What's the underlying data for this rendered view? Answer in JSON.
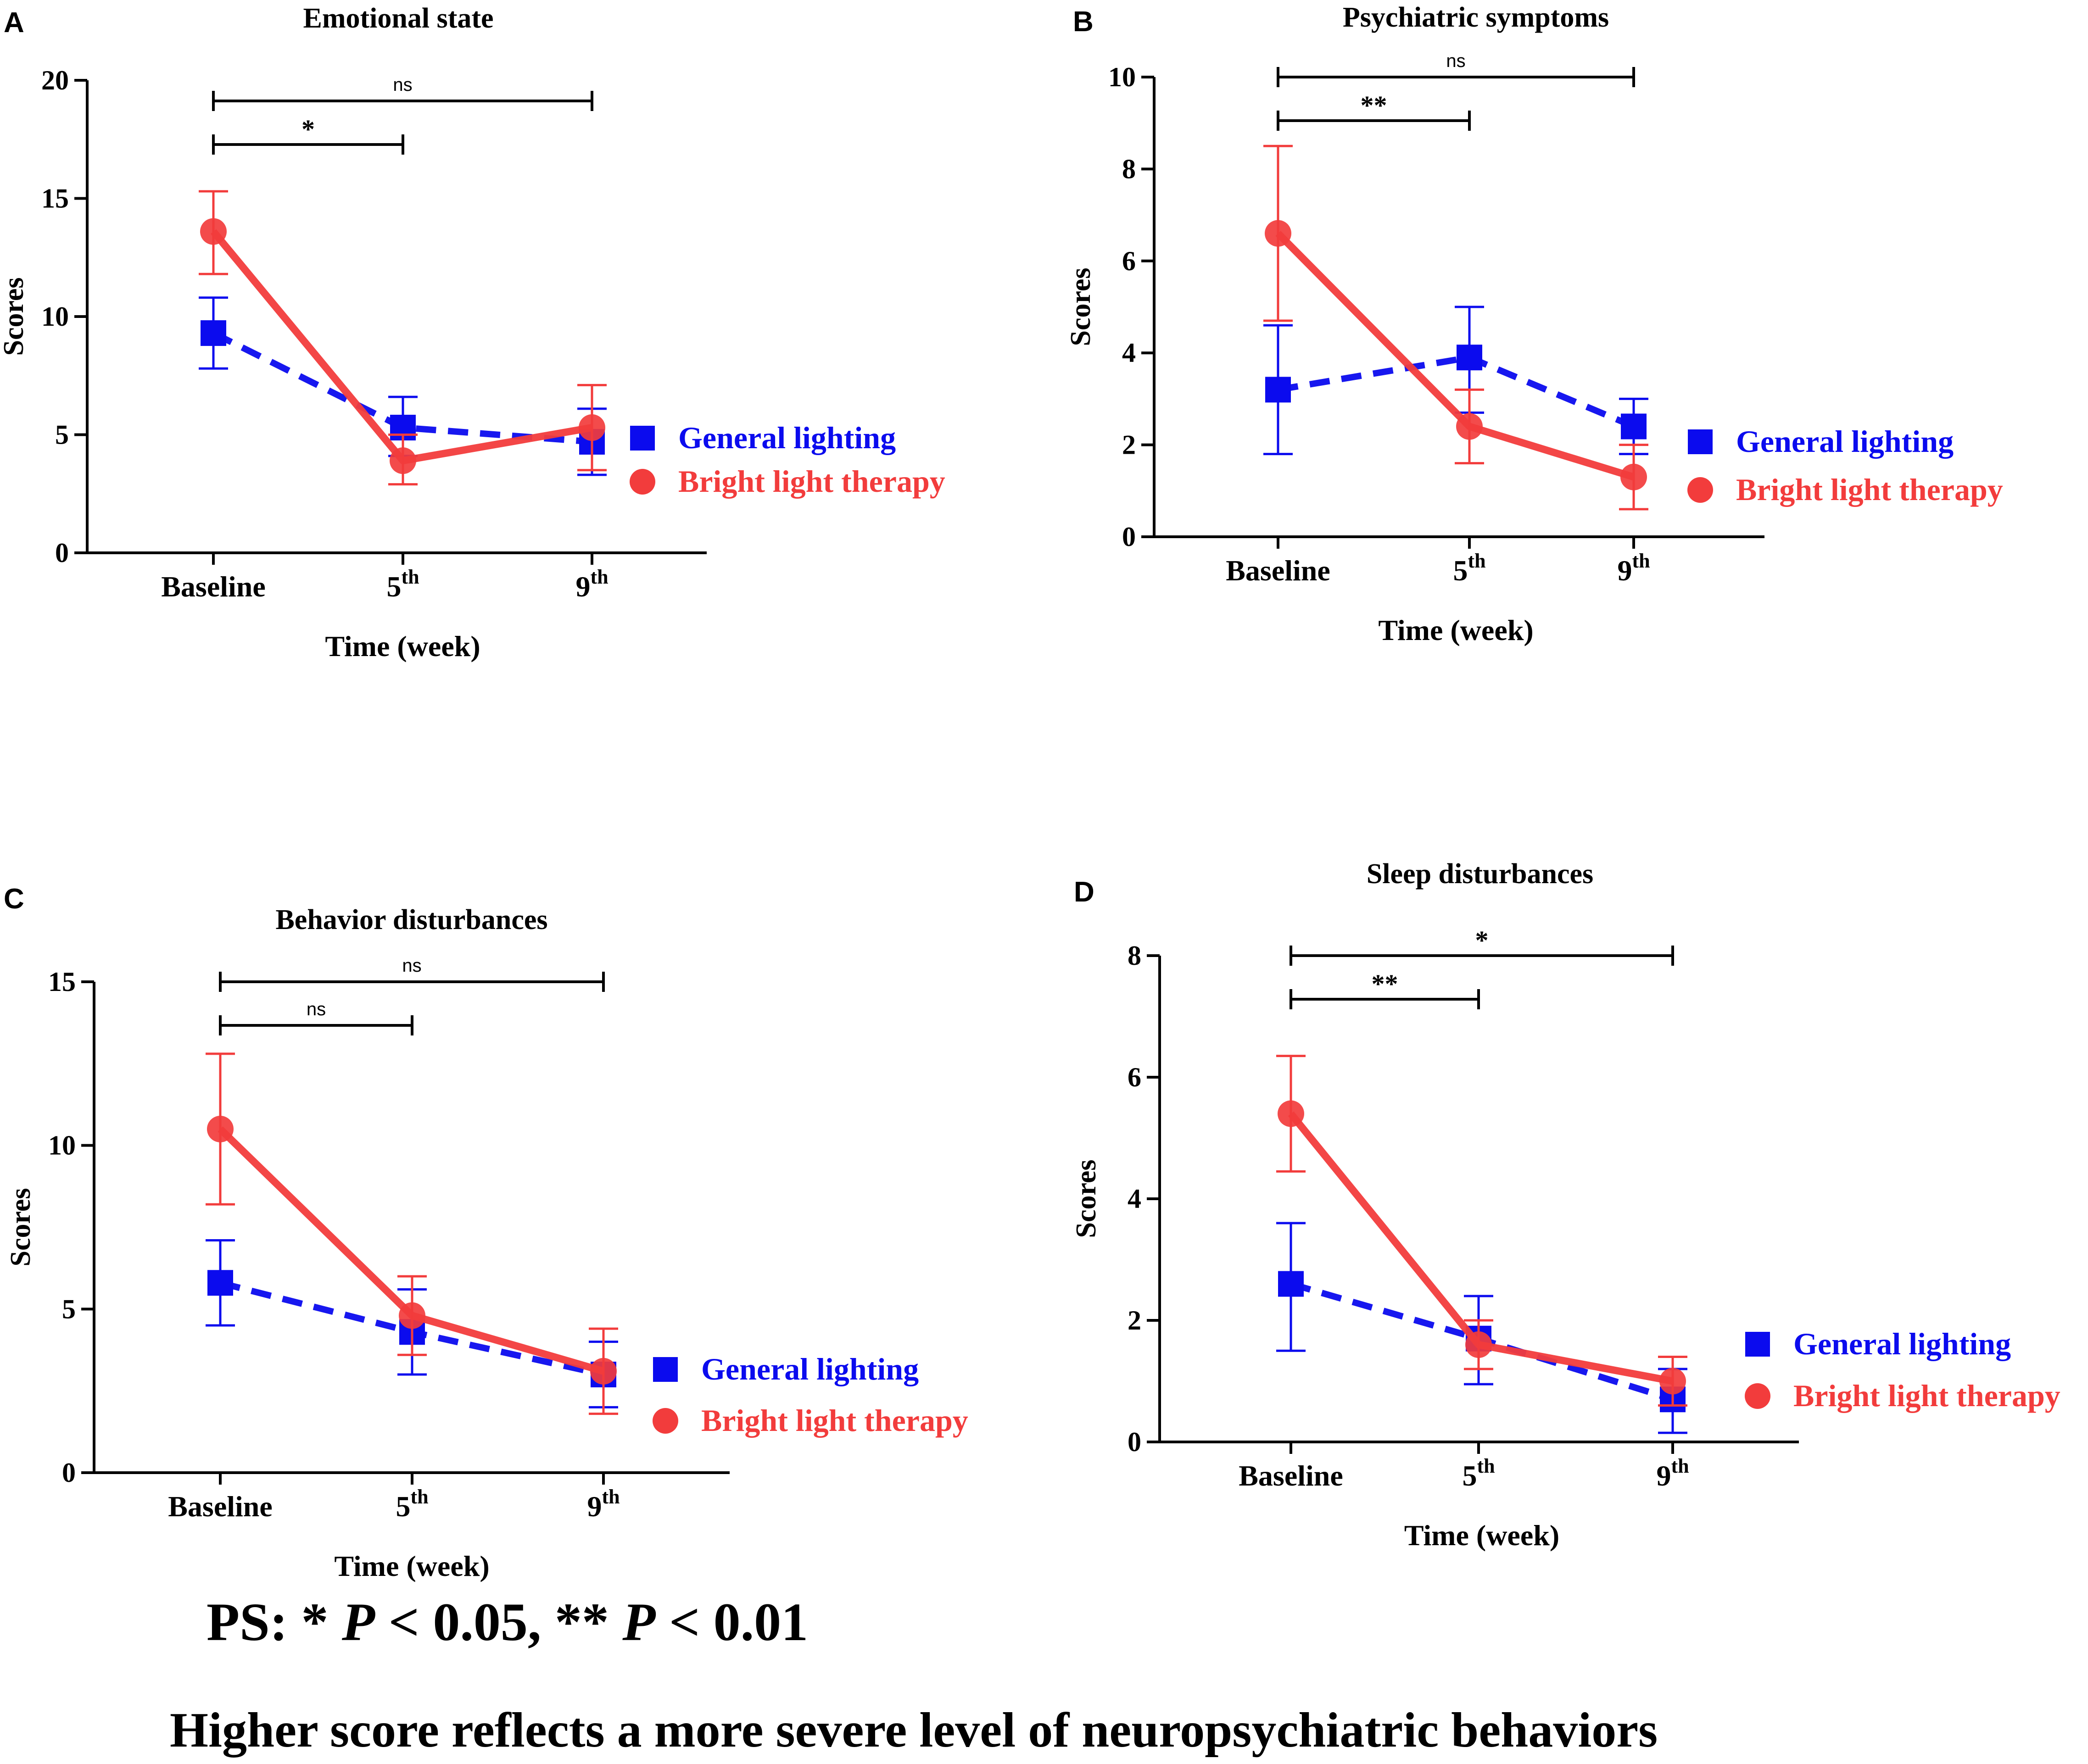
{
  "colors": {
    "general": "#0b0bee",
    "bright": "#f23c3c",
    "axis": "#000000"
  },
  "legend": {
    "general_label": "General lighting",
    "bright_label": "Bright light therapy",
    "general_icon": "square-marker-icon",
    "bright_icon": "circle-marker-icon"
  },
  "footnote": {
    "ps_prefix": "PS: * ",
    "p1": "P",
    "ps_mid": " < 0.05, ** ",
    "p2": "P",
    "ps_suffix": " < 0.01",
    "summary": "Higher score reflects a more severe level of neuropsychiatric behaviors"
  },
  "chart_data": [
    {
      "panel": "A",
      "type": "line",
      "title": "Emotional state",
      "xlabel": "Time (week)",
      "ylabel": "Scores",
      "categories": [
        {
          "base": "Baseline",
          "sup": ""
        },
        {
          "base": "5",
          "sup": "th"
        },
        {
          "base": "9",
          "sup": "th"
        }
      ],
      "ylim": [
        0,
        20
      ],
      "yticks": [
        0,
        5,
        10,
        15,
        20
      ],
      "legend_position": "right",
      "series": [
        {
          "name": "General lighting",
          "key": "general",
          "marker": "square",
          "line": "dashed",
          "values": [
            9.3,
            5.3,
            4.7
          ],
          "err_low": [
            7.8,
            4.1,
            3.3
          ],
          "err_high": [
            10.8,
            6.6,
            6.1
          ]
        },
        {
          "name": "Bright light therapy",
          "key": "bright",
          "marker": "circle",
          "line": "solid",
          "values": [
            13.6,
            3.9,
            5.3
          ],
          "err_low": [
            11.8,
            2.9,
            3.5
          ],
          "err_high": [
            15.3,
            5.0,
            7.1
          ]
        }
      ],
      "significance": [
        {
          "from": 0,
          "to": 1,
          "label": "*",
          "level": 1
        },
        {
          "from": 0,
          "to": 2,
          "label": "ns",
          "level": 2
        }
      ]
    },
    {
      "panel": "B",
      "type": "line",
      "title": "Psychiatric symptoms",
      "xlabel": "Time (week)",
      "ylabel": "Scores",
      "categories": [
        {
          "base": "Baseline",
          "sup": ""
        },
        {
          "base": "5",
          "sup": "th"
        },
        {
          "base": "9",
          "sup": "th"
        }
      ],
      "ylim": [
        0,
        10
      ],
      "yticks": [
        0,
        2,
        4,
        6,
        8,
        10
      ],
      "legend_position": "right",
      "series": [
        {
          "name": "General lighting",
          "key": "general",
          "marker": "square",
          "line": "dashed",
          "values": [
            3.2,
            3.9,
            2.4
          ],
          "err_low": [
            1.8,
            2.7,
            1.8
          ],
          "err_high": [
            4.6,
            5.0,
            3.0
          ]
        },
        {
          "name": "Bright light therapy",
          "key": "bright",
          "marker": "circle",
          "line": "solid",
          "values": [
            6.6,
            2.4,
            1.3
          ],
          "err_low": [
            4.7,
            1.6,
            0.6
          ],
          "err_high": [
            8.5,
            3.2,
            2.0
          ]
        }
      ],
      "significance": [
        {
          "from": 0,
          "to": 1,
          "label": "**",
          "level": 1
        },
        {
          "from": 0,
          "to": 2,
          "label": "ns",
          "level": 2
        }
      ]
    },
    {
      "panel": "C",
      "type": "line",
      "title": "Behavior disturbances",
      "xlabel": "Time (week)",
      "ylabel": "Scores",
      "categories": [
        {
          "base": "Baseline",
          "sup": ""
        },
        {
          "base": "5",
          "sup": "th"
        },
        {
          "base": "9",
          "sup": "th"
        }
      ],
      "ylim": [
        0,
        15
      ],
      "yticks": [
        0,
        5,
        10,
        15
      ],
      "legend_position": "right",
      "series": [
        {
          "name": "General lighting",
          "key": "general",
          "marker": "square",
          "line": "dashed",
          "values": [
            5.8,
            4.3,
            3.0
          ],
          "err_low": [
            4.5,
            3.0,
            2.0
          ],
          "err_high": [
            7.1,
            5.6,
            4.0
          ]
        },
        {
          "name": "Bright light therapy",
          "key": "bright",
          "marker": "circle",
          "line": "solid",
          "values": [
            10.5,
            4.8,
            3.1
          ],
          "err_low": [
            8.2,
            3.6,
            1.8
          ],
          "err_high": [
            12.8,
            6.0,
            4.4
          ]
        }
      ],
      "significance": [
        {
          "from": 0,
          "to": 1,
          "label": "ns",
          "level": 1
        },
        {
          "from": 0,
          "to": 2,
          "label": "ns",
          "level": 2
        }
      ]
    },
    {
      "panel": "D",
      "type": "line",
      "title": "Sleep disturbances",
      "xlabel": "Time (week)",
      "ylabel": "Scores",
      "categories": [
        {
          "base": "Baseline",
          "sup": ""
        },
        {
          "base": "5",
          "sup": "th"
        },
        {
          "base": "9",
          "sup": "th"
        }
      ],
      "ylim": [
        0,
        8
      ],
      "yticks": [
        0,
        2,
        4,
        6,
        8
      ],
      "legend_position": "right",
      "series": [
        {
          "name": "General lighting",
          "key": "general",
          "marker": "square",
          "line": "dashed",
          "values": [
            2.6,
            1.7,
            0.7
          ],
          "err_low": [
            1.5,
            0.95,
            0.15
          ],
          "err_high": [
            3.6,
            2.4,
            1.2
          ]
        },
        {
          "name": "Bright light therapy",
          "key": "bright",
          "marker": "circle",
          "line": "solid",
          "values": [
            5.4,
            1.6,
            1.0
          ],
          "err_low": [
            4.45,
            1.2,
            0.6
          ],
          "err_high": [
            6.35,
            2.0,
            1.4
          ]
        }
      ],
      "significance": [
        {
          "from": 0,
          "to": 1,
          "label": "**",
          "level": 1
        },
        {
          "from": 0,
          "to": 2,
          "label": "*",
          "level": 2
        }
      ]
    }
  ]
}
